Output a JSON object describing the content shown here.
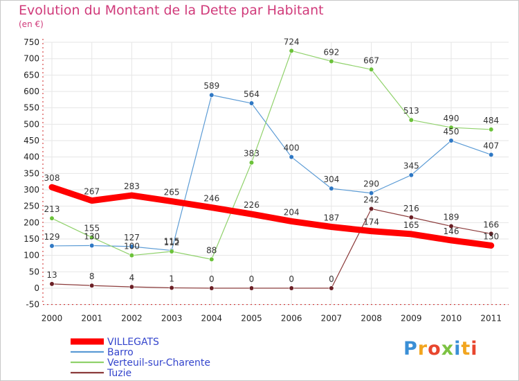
{
  "title": "Evolution du Montant de la Dette par Habitant",
  "subtitle": "(en €)",
  "logo": {
    "text": "Proxiti",
    "colors": [
      "#3a8fd6",
      "#f2a51f",
      "#e8462e",
      "#7cc242"
    ]
  },
  "chart_data": {
    "type": "line",
    "x": [
      "2000",
      "2001",
      "2002",
      "2003",
      "2004",
      "2005",
      "2006",
      "2007",
      "2008",
      "2009",
      "2010",
      "2011"
    ],
    "ylim": [
      -50,
      750
    ],
    "yticks": [
      -50,
      0,
      50,
      100,
      150,
      200,
      250,
      300,
      350,
      400,
      450,
      500,
      550,
      600,
      650,
      700,
      750
    ],
    "grid": true,
    "legend_position": "bottom-left",
    "series": [
      {
        "name": "VILLEGATS",
        "color": "#ff0000",
        "width": 9,
        "marker": false,
        "values": [
          308,
          267,
          283,
          265,
          246,
          226,
          204,
          187,
          174,
          165,
          146,
          130
        ],
        "labels": [
          "308",
          "267",
          "283",
          "265",
          "246",
          "226",
          "204",
          "187",
          "174",
          "165",
          "146",
          "130"
        ]
      },
      {
        "name": "Barro",
        "color": "#5b9bd5",
        "marker_color": "#2f78c4",
        "width": 1.2,
        "marker": true,
        "values": [
          129,
          130,
          127,
          115,
          589,
          564,
          400,
          304,
          290,
          345,
          450,
          407
        ],
        "labels": [
          "129",
          "130",
          "127",
          "115",
          "589",
          "564",
          "400",
          "304",
          "290",
          "345",
          "450",
          "407"
        ]
      },
      {
        "name": "Verteuil-sur-Charente",
        "color": "#8fd16a",
        "marker_color": "#6cc23a",
        "width": 1.2,
        "marker": true,
        "values": [
          213,
          155,
          100,
          112,
          88,
          383,
          724,
          692,
          667,
          513,
          490,
          484
        ],
        "labels": [
          "213",
          "155",
          "100",
          "112",
          "88",
          "383",
          "724",
          "692",
          "667",
          "513",
          "490",
          "484"
        ]
      },
      {
        "name": "Tuzie",
        "color": "#8b3a3a",
        "marker_color": "#6b1f25",
        "width": 1.2,
        "marker": true,
        "values": [
          13,
          8,
          4,
          1,
          0,
          0,
          0,
          0,
          242,
          216,
          189,
          166
        ],
        "labels": [
          "13",
          "8",
          "4",
          "1",
          "0",
          "0",
          "0",
          "0",
          "242",
          "216",
          "189",
          "166"
        ]
      }
    ]
  }
}
